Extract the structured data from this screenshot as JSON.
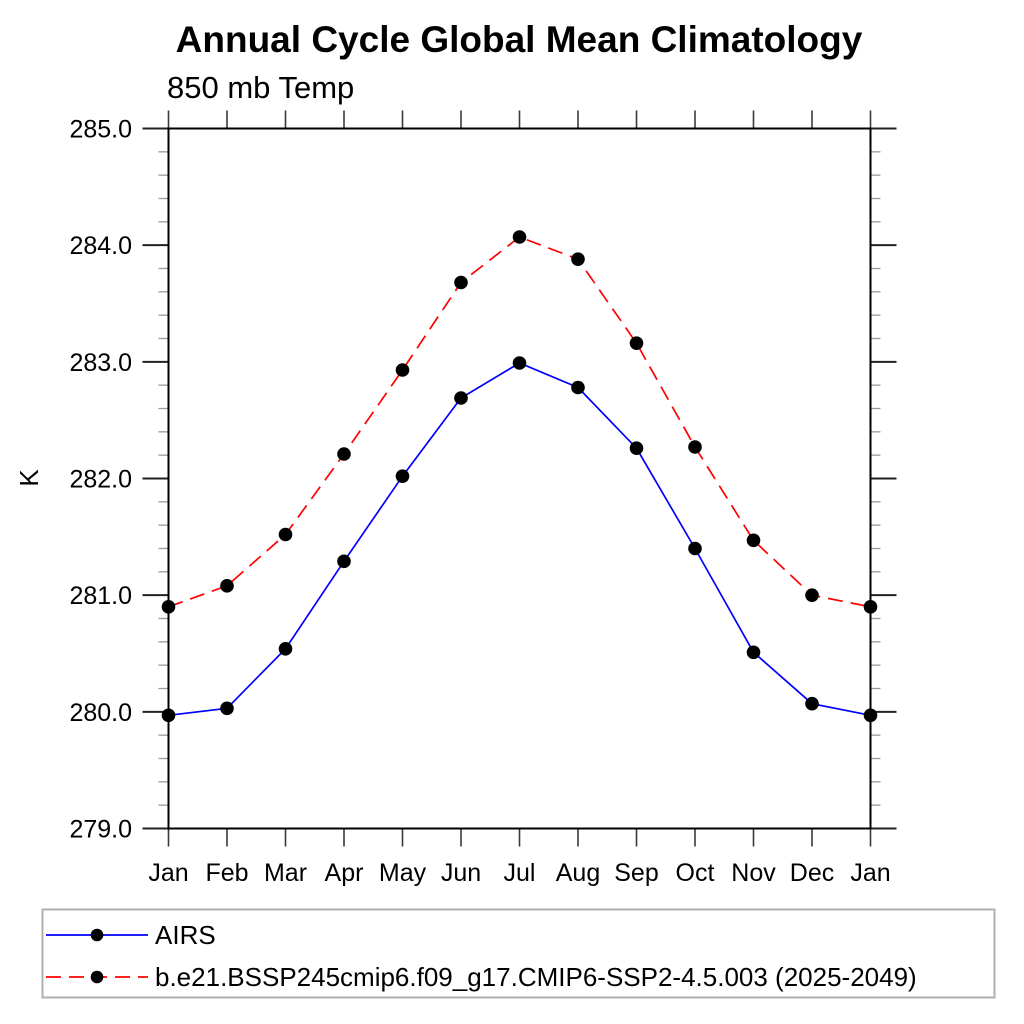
{
  "chart_data": {
    "type": "line",
    "title": "Annual Cycle Global Mean Climatology",
    "subtitle": "850 mb Temp",
    "ylabel": "K",
    "categories": [
      "Jan",
      "Feb",
      "Mar",
      "Apr",
      "May",
      "Jun",
      "Jul",
      "Aug",
      "Sep",
      "Oct",
      "Nov",
      "Dec",
      "Jan"
    ],
    "ylim": [
      279.0,
      285.0
    ],
    "ytick_step": 1.0,
    "yminor_step": 0.2,
    "ytick_labels": [
      "285.0",
      "284.0",
      "283.0",
      "282.0",
      "281.0",
      "280.0",
      "279.0"
    ],
    "grid": false,
    "legend_position": "bottom-left",
    "axis_color": "#000000",
    "series": [
      {
        "name": "AIRS",
        "color": "#0000ff",
        "line_style": "solid",
        "marker": "filled-circle",
        "marker_color": "#000000",
        "values": [
          279.97,
          280.03,
          280.54,
          281.29,
          282.02,
          282.69,
          282.99,
          282.78,
          282.26,
          281.4,
          280.51,
          280.07,
          279.97
        ]
      },
      {
        "name": "b.e21.BSSP245cmip6.f09_g17.CMIP6-SSP2-4.5.003 (2025-2049)",
        "color": "#ff0000",
        "line_style": "dashed",
        "marker": "filled-circle",
        "marker_color": "#000000",
        "values": [
          280.9,
          281.08,
          281.52,
          282.21,
          282.93,
          283.68,
          284.07,
          283.88,
          283.16,
          282.27,
          281.47,
          281.0,
          280.9
        ]
      }
    ]
  }
}
